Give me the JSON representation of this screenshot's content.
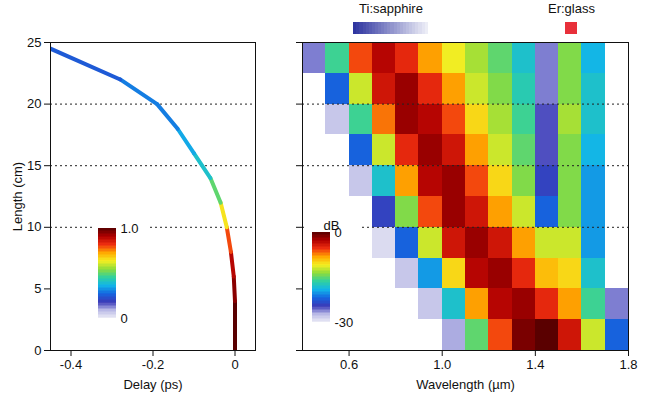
{
  "chart_data": [
    {
      "type": "line",
      "xlabel": "Delay (ps)",
      "ylabel": "Length (cm)",
      "xlim": [
        -0.45,
        0.05
      ],
      "ylim": [
        0,
        25
      ],
      "xticks": [
        -0.4,
        -0.2,
        0
      ],
      "yticks": [
        0,
        5,
        10,
        15,
        20,
        25
      ],
      "points": {
        "length": [
          0,
          2,
          4,
          6,
          8,
          10,
          12,
          14,
          16,
          18,
          20,
          22,
          24.5
        ],
        "delay": [
          0,
          0,
          0,
          -0.003,
          -0.01,
          -0.02,
          -0.035,
          -0.06,
          -0.1,
          -0.14,
          -0.19,
          -0.28,
          -0.45
        ],
        "intensity": [
          1,
          1,
          0.95,
          0.9,
          0.8,
          0.65,
          0.5,
          0.4,
          0.35,
          0.3,
          0.3,
          0.25,
          0.2
        ]
      },
      "colorbar": {
        "range": [
          0,
          1
        ],
        "ticks": [
          {
            "value": 1,
            "label": "1.0"
          },
          0
        ]
      },
      "reference_lines": [
        10,
        15,
        20
      ]
    },
    {
      "type": "heatmap",
      "xlabel": "Wavelength (µm)",
      "xlim": [
        0.4,
        1.8
      ],
      "ylim": [
        0,
        25
      ],
      "xticks": [
        0.6,
        {
          "value": 1,
          "label": "1.0"
        },
        1.4,
        1.8
      ],
      "yticks": [
        0,
        5,
        10,
        15,
        20,
        25
      ],
      "tick_labels": "x",
      "cells": {
        "x": [
          0.45,
          0.55,
          0.65,
          0.75,
          0.85,
          0.95,
          1.05,
          1.15,
          1.25,
          1.35,
          1.45,
          1.55,
          1.65,
          1.75
        ],
        "y": [
          1.25,
          3.75,
          6.25,
          8.75,
          11.25,
          13.75,
          16.25,
          18.75,
          21.25,
          23.75
        ],
        "values": [
          [
            null,
            null,
            null,
            null,
            null,
            null,
            -27,
            -15,
            -6,
            -1,
            0,
            -4,
            -12,
            -22
          ],
          [
            null,
            null,
            null,
            null,
            null,
            -28,
            -18,
            -8,
            -3,
            -2,
            -5,
            -8,
            -16,
            -26
          ],
          [
            null,
            null,
            null,
            null,
            -28,
            -20,
            -10,
            -3,
            -2,
            -5,
            -9,
            -10,
            -18,
            null
          ],
          [
            null,
            null,
            null,
            -29,
            -22,
            -12,
            -4,
            -2,
            -4,
            -8,
            -12,
            -12,
            -20,
            null
          ],
          [
            null,
            null,
            null,
            -24,
            -14,
            -6,
            -2,
            -4,
            -8,
            -12,
            -22,
            -14,
            -20,
            null
          ],
          [
            null,
            null,
            -28,
            -18,
            -8,
            -3,
            -2,
            -6,
            -10,
            -14,
            -24,
            -14,
            -20,
            null
          ],
          [
            null,
            null,
            -22,
            -12,
            -5,
            -2,
            -4,
            -8,
            -12,
            -15,
            -25,
            -14,
            -19,
            null
          ],
          [
            null,
            -28,
            -16,
            -7,
            -2,
            -3,
            -6,
            -10,
            -13,
            -16,
            -25,
            -13,
            -18,
            null
          ],
          [
            null,
            -22,
            -12,
            -4,
            -2,
            -5,
            -8,
            -12,
            -14,
            -17,
            -26,
            -14,
            -18,
            null
          ],
          [
            -26,
            -16,
            -6,
            -3,
            -5,
            -8,
            -11,
            -13,
            -15,
            -18,
            -26,
            -14,
            -19,
            null
          ]
        ]
      },
      "colorbar": {
        "label": "dB",
        "range": [
          -30,
          0
        ],
        "ticks": [
          0,
          -30
        ]
      },
      "bands": [
        {
          "label": "Ti:sapphire",
          "range": [
            0.62,
            0.94
          ],
          "color": "#2f35a0"
        },
        {
          "label": "Er:glass",
          "range": [
            1.53,
            1.58
          ],
          "color": "#e8303a"
        }
      ],
      "reference_lines": [
        10,
        15,
        20
      ]
    }
  ]
}
